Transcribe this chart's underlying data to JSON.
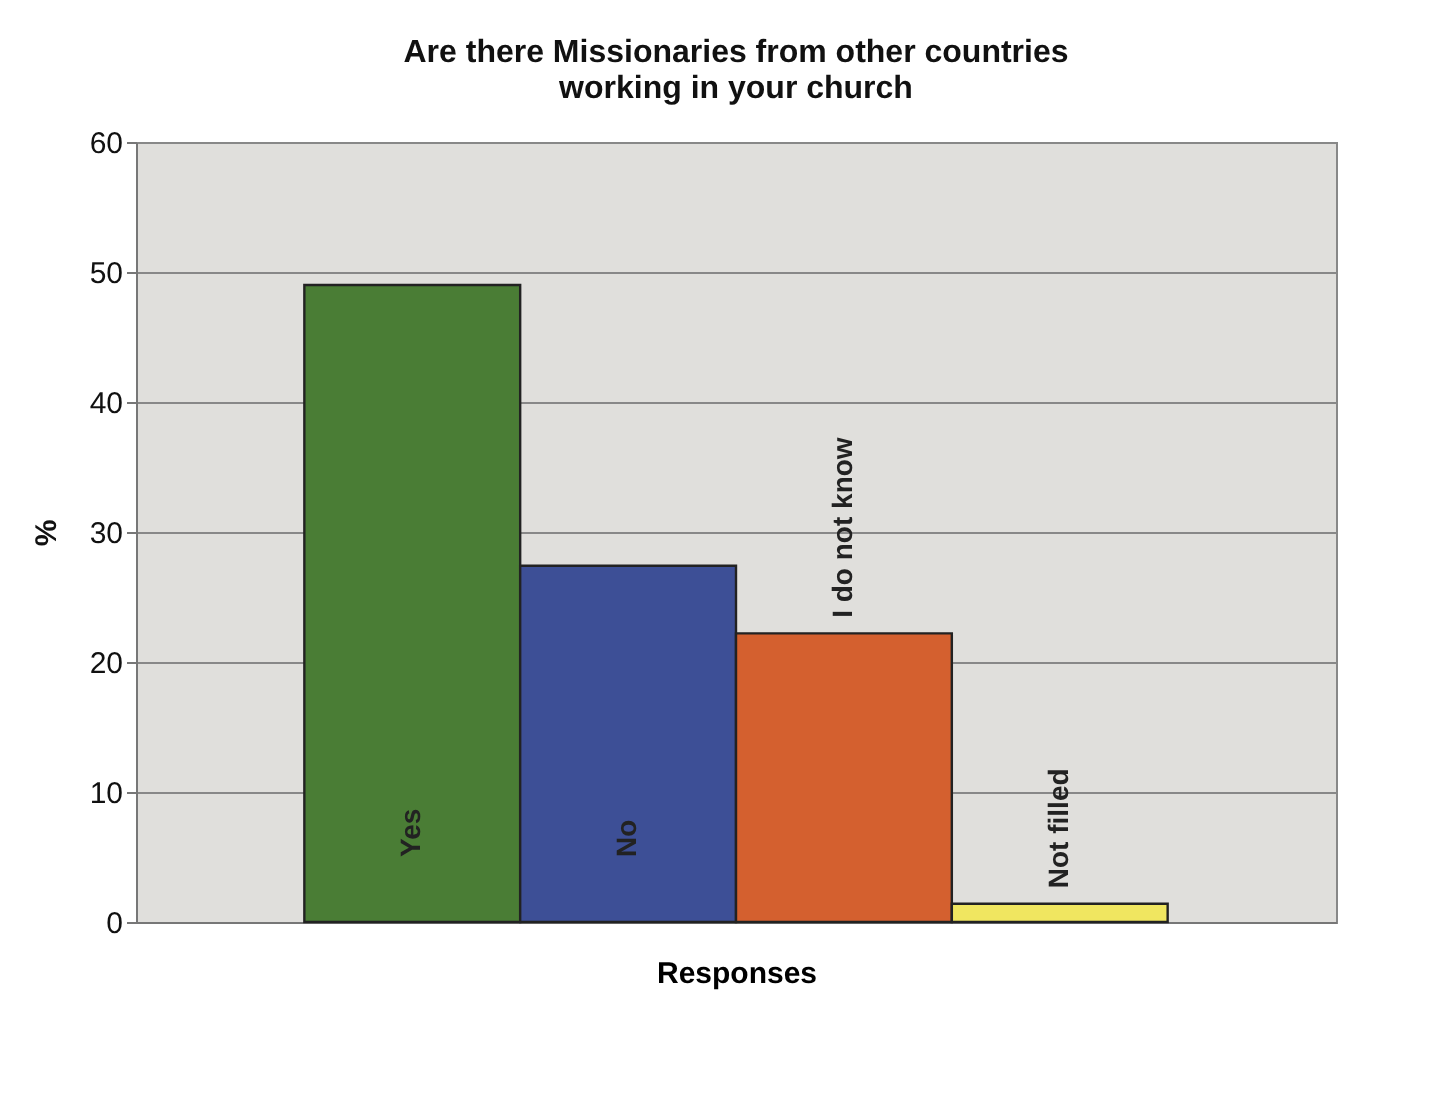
{
  "chart_data": {
    "type": "bar",
    "title": "Are there Missionaries from other countries\nworking in your church",
    "xlabel": "Responses",
    "ylabel": "%",
    "categories": [
      "Yes",
      "No",
      "I do not know",
      "Not filled"
    ],
    "values": [
      49,
      27.4,
      22.2,
      1.4
    ],
    "colors": [
      "#4a7d35",
      "#3d4f96",
      "#d4602f",
      "#f0e660"
    ],
    "ylim": [
      0,
      60
    ],
    "yticks": [
      0,
      10,
      20,
      30,
      40,
      50,
      60
    ],
    "grid": "y",
    "tick_labels": "y",
    "legend": false
  }
}
